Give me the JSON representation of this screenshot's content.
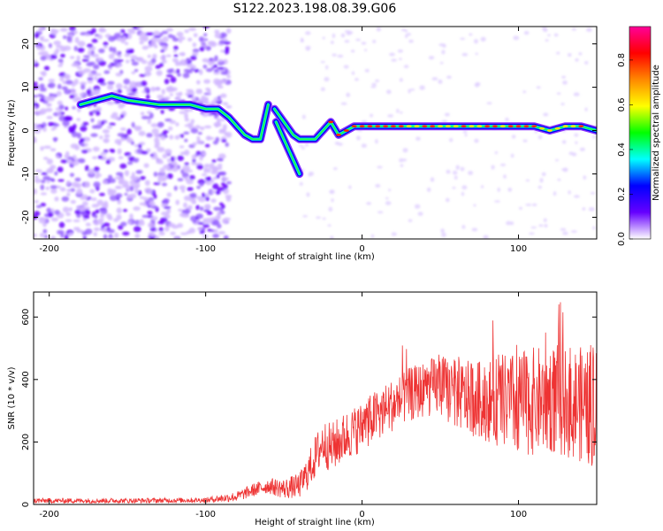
{
  "title": "S122.2023.198.08.39.G06",
  "chart_data": [
    {
      "type": "heatmap",
      "xlabel": "Height of straight line (km)",
      "ylabel": "Frequency (Hz)",
      "xlim": [
        -210,
        150
      ],
      "ylim": [
        -25,
        24
      ],
      "xticks": [
        -200,
        -100,
        0,
        100
      ],
      "yticks": [
        -20,
        -10,
        0,
        10,
        20
      ],
      "colorbar": {
        "label": "Normalized spectral amplitude",
        "range": [
          0,
          0.95
        ],
        "ticks": [
          0.0,
          0.2,
          0.4,
          0.6,
          0.8
        ],
        "tick_labels": [
          "0.0",
          "0.2",
          "0.4",
          "0.6",
          "0.8"
        ],
        "colors": [
          "#ffffff",
          "#6600ff",
          "#0000ff",
          "#00ffff",
          "#00ff00",
          "#ffff00",
          "#ff8800",
          "#ff0000",
          "#ff0099"
        ]
      },
      "ridge": {
        "x": [
          -180,
          -170,
          -160,
          -150,
          -130,
          -110,
          -100,
          -92,
          -85,
          -80,
          -75,
          -70,
          -65,
          -60,
          -56,
          -52,
          -48,
          -44,
          -40,
          -35,
          -30,
          -25,
          -20,
          -15,
          -10,
          -5,
          0,
          10,
          20,
          30,
          40,
          50,
          60,
          70,
          80,
          90,
          100,
          110,
          120,
          130,
          140,
          150
        ],
        "y": [
          6,
          7,
          8,
          7,
          6,
          6,
          5,
          5,
          3,
          1,
          -1,
          -2,
          -2,
          6,
          5,
          3,
          1,
          -1,
          -2,
          -2,
          -2,
          0,
          2,
          -1,
          0,
          1,
          1,
          1,
          1,
          1,
          1,
          1,
          1,
          1,
          1,
          1,
          1,
          1,
          0,
          1,
          1,
          0
        ]
      },
      "branch": {
        "x": [
          -55,
          -50,
          -45,
          -40
        ],
        "y": [
          2,
          -2,
          -6,
          -10
        ]
      }
    },
    {
      "type": "line",
      "xlabel": "Height of straight line (km)",
      "ylabel": "SNR (10 * v/v)",
      "xlim": [
        -210,
        150
      ],
      "ylim": [
        0,
        680
      ],
      "xticks": [
        -200,
        -100,
        0,
        100
      ],
      "yticks": [
        0,
        200,
        400,
        600
      ],
      "color": "#ee3333",
      "envelope": {
        "x": [
          -210,
          -150,
          -100,
          -80,
          -70,
          -60,
          -50,
          -40,
          -35,
          -30,
          -25,
          -20,
          -10,
          0,
          10,
          20,
          30,
          40,
          50,
          60,
          70,
          80,
          90,
          100,
          110,
          120,
          130,
          140,
          150
        ],
        "y": [
          12,
          12,
          14,
          25,
          45,
          60,
          50,
          60,
          100,
          150,
          200,
          180,
          220,
          250,
          290,
          320,
          350,
          370,
          380,
          350,
          340,
          330,
          330,
          320,
          330,
          340,
          330,
          320,
          300
        ]
      },
      "noise_amplitude": {
        "x": [
          -210,
          -100,
          -60,
          -40,
          -30,
          -20,
          0,
          40,
          80,
          100,
          130,
          150
        ],
        "y": [
          8,
          8,
          25,
          40,
          70,
          80,
          80,
          90,
          130,
          170,
          180,
          190
        ]
      }
    }
  ]
}
